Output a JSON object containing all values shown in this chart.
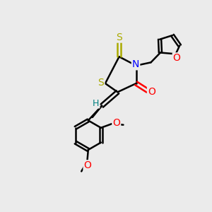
{
  "background_color": "#ebebeb",
  "atom_colors": {
    "C": "#000000",
    "H": "#008080",
    "N": "#0000ff",
    "O": "#ff0000",
    "S": "#aaaa00"
  },
  "bond_lw": 1.8,
  "figsize": [
    3.0,
    3.0
  ],
  "dpi": 100,
  "xlim": [
    0,
    10
  ],
  "ylim": [
    0,
    10
  ]
}
